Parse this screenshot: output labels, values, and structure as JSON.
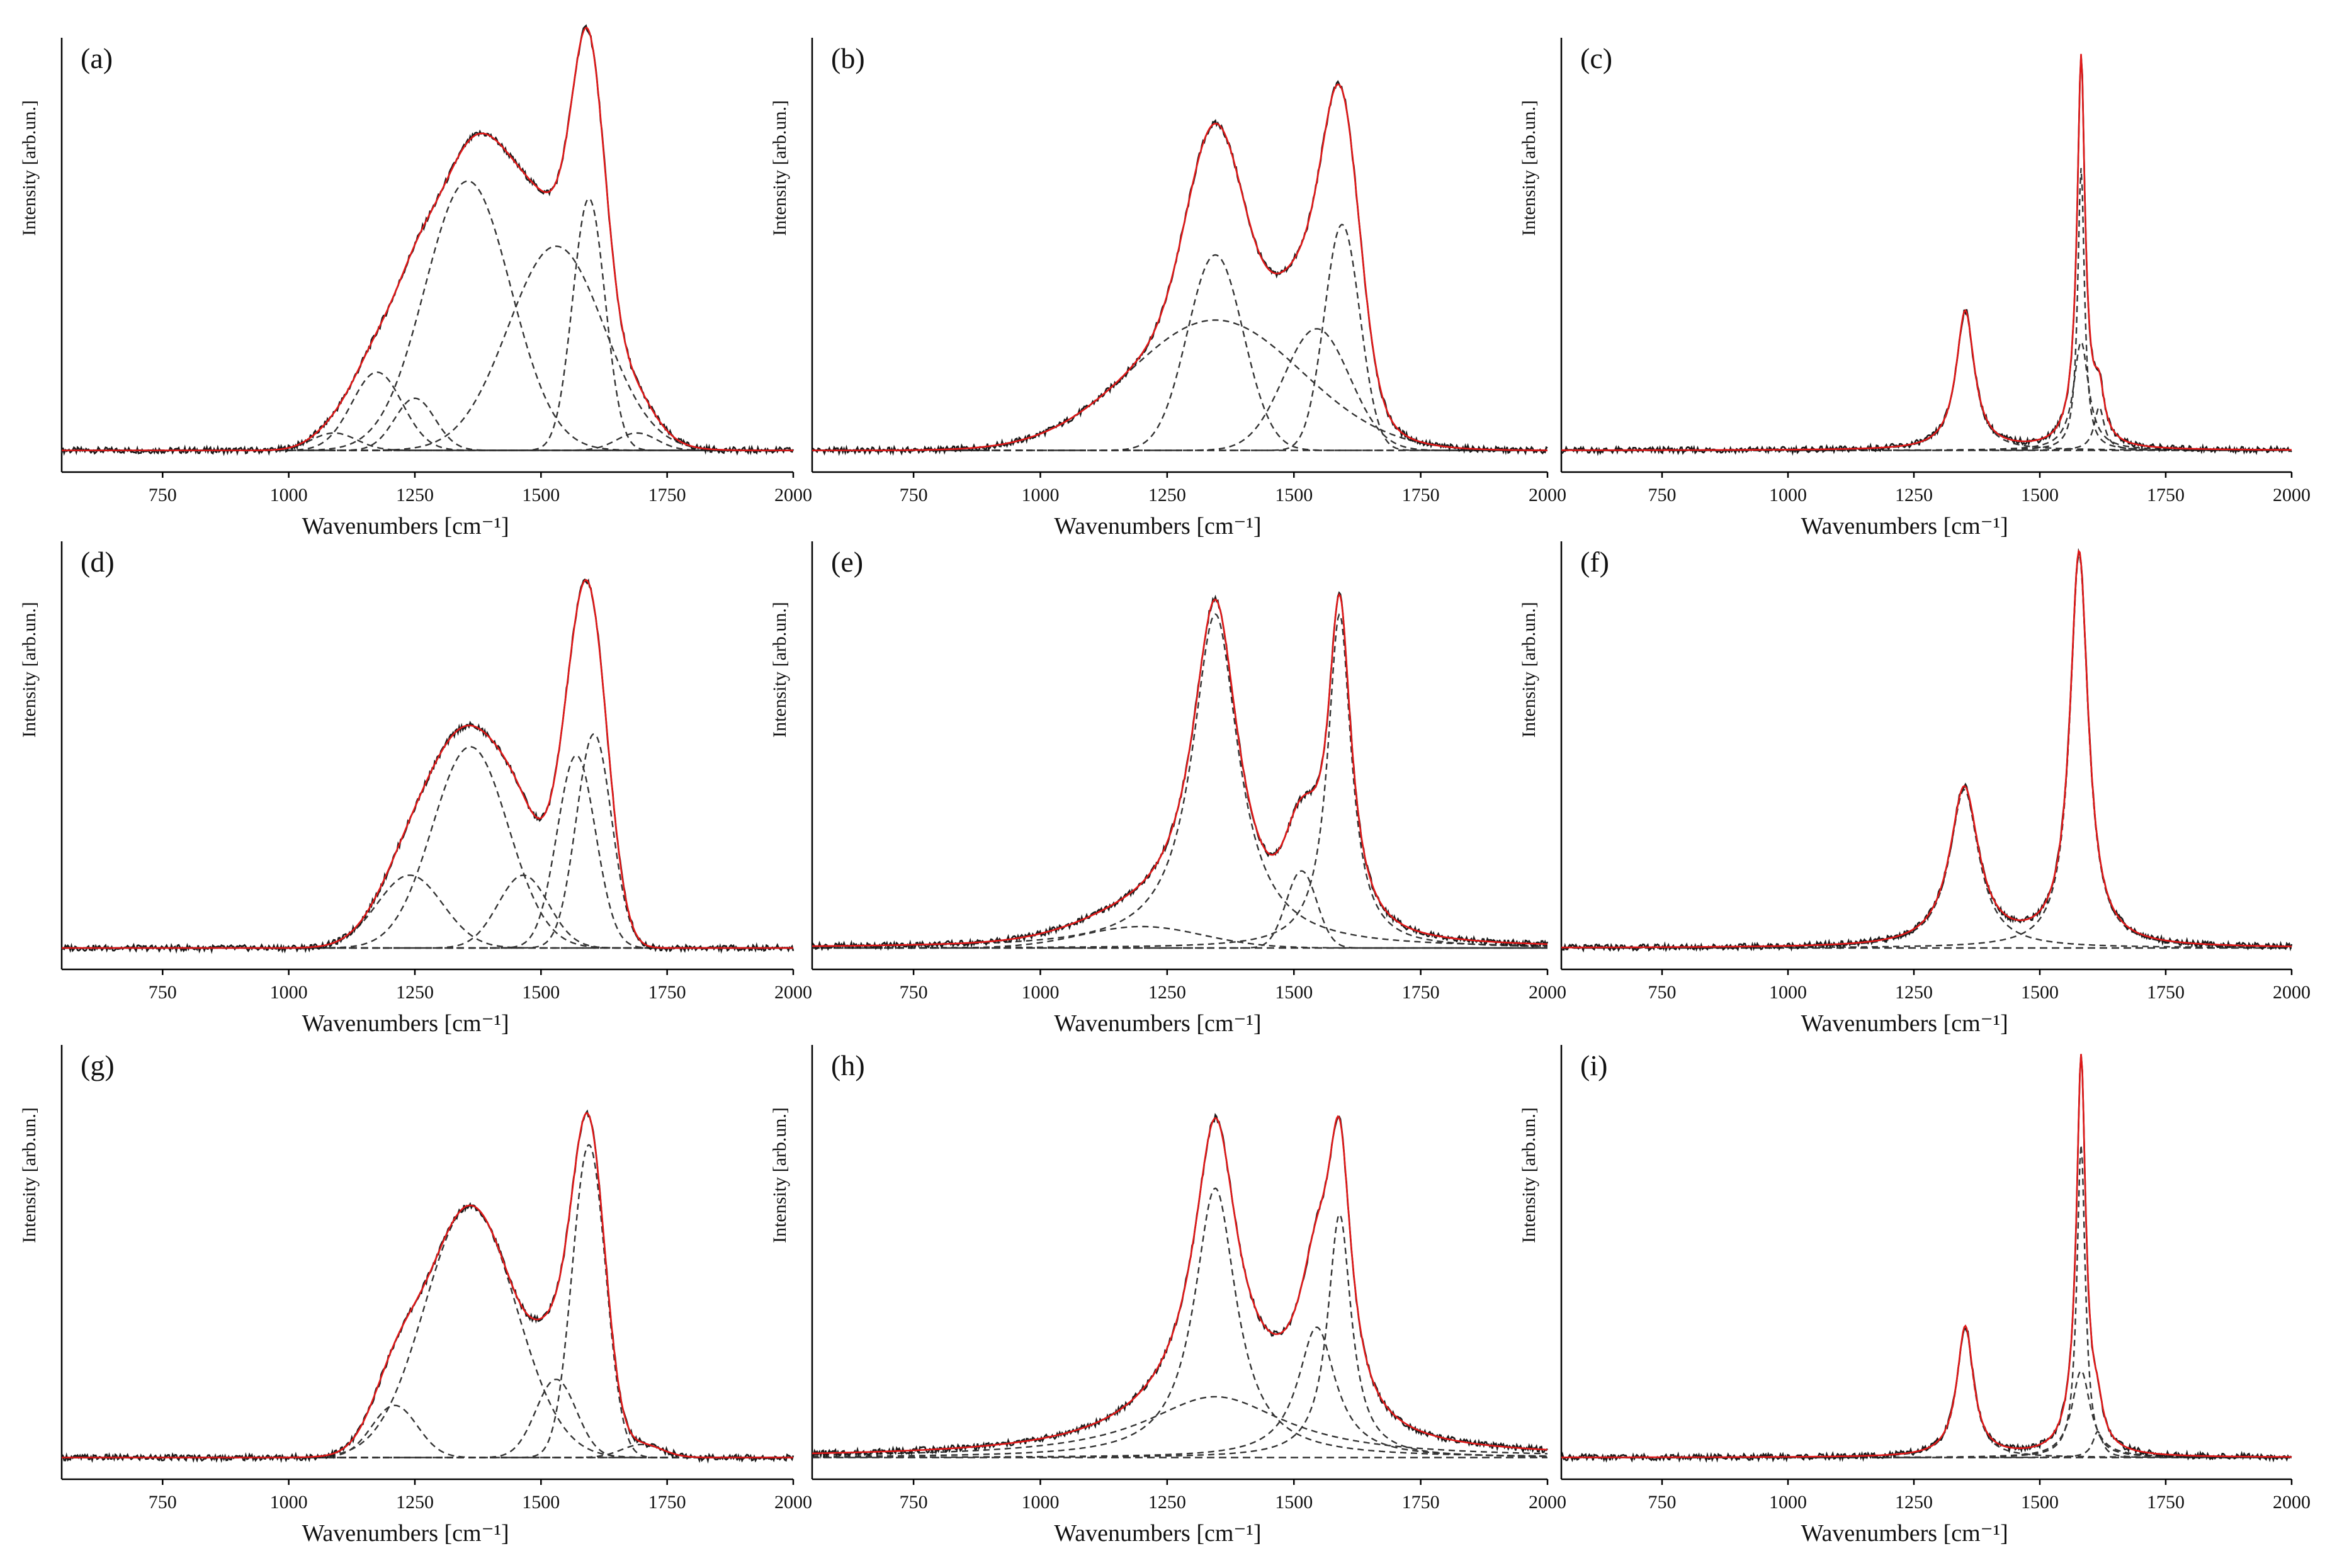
{
  "colors": {
    "measured": "#1a1a1a",
    "fit": "#e01818",
    "component": "#333333",
    "axis": "#000000"
  },
  "chart_data": [
    {
      "type": "line",
      "label": "(a)",
      "xlabel": "Wavenumbers [cm⁻¹]",
      "ylabel": "Intensity [arb.un.]",
      "xlim": [
        550,
        2000
      ],
      "ylim": [
        0,
        100
      ],
      "baseline": 5,
      "x_ticks": [
        750,
        1000,
        1250,
        1500,
        1750,
        2000
      ],
      "x_tick_labels": [
        "750",
        "1000",
        "1250",
        "1500",
        "1750",
        "2000"
      ],
      "peaks": [
        {
          "center": 1090,
          "height": 4,
          "width": 45,
          "shape": "g"
        },
        {
          "center": 1175,
          "height": 18,
          "width": 50,
          "shape": "g"
        },
        {
          "center": 1250,
          "height": 12,
          "width": 40,
          "shape": "g"
        },
        {
          "center": 1355,
          "height": 62,
          "width": 85,
          "shape": "g"
        },
        {
          "center": 1530,
          "height": 47,
          "width": 95,
          "shape": "g"
        },
        {
          "center": 1595,
          "height": 58,
          "width": 32,
          "shape": "g"
        },
        {
          "center": 1690,
          "height": 4,
          "width": 40,
          "shape": "g"
        }
      ]
    },
    {
      "type": "line",
      "label": "(b)",
      "xlabel": "Wavenumbers [cm⁻¹]",
      "ylabel": "Intensity [arb.un.]",
      "xlim": [
        550,
        2000
      ],
      "ylim": [
        0,
        100
      ],
      "baseline": 5,
      "x_ticks": [
        750,
        1000,
        1250,
        1500,
        1750,
        2000
      ],
      "x_tick_labels": [
        "750",
        "1000",
        "1250",
        "1500",
        "1750",
        "2000"
      ],
      "peaks": [
        {
          "center": 1345,
          "height": 45,
          "width": 55,
          "shape": "g"
        },
        {
          "center": 1345,
          "height": 30,
          "width": 170,
          "shape": "g"
        },
        {
          "center": 1545,
          "height": 28,
          "width": 65,
          "shape": "g"
        },
        {
          "center": 1595,
          "height": 52,
          "width": 35,
          "shape": "g"
        }
      ]
    },
    {
      "type": "line",
      "label": "(c)",
      "xlabel": "Wavenumbers [cm⁻¹]",
      "ylabel": "Intensity [arb.un.]",
      "xlim": [
        550,
        2000
      ],
      "ylim": [
        0,
        100
      ],
      "baseline": 5,
      "x_ticks": [
        750,
        1000,
        1250,
        1500,
        1750,
        2000
      ],
      "x_tick_labels": [
        "750",
        "1000",
        "1250",
        "1500",
        "1750",
        "2000"
      ],
      "peaks": [
        {
          "center": 1352,
          "height": 32,
          "width": 22,
          "shape": "l"
        },
        {
          "center": 1582,
          "height": 65,
          "width": 8,
          "shape": "l"
        },
        {
          "center": 1582,
          "height": 25,
          "width": 18,
          "shape": "l"
        },
        {
          "center": 1618,
          "height": 10,
          "width": 12,
          "shape": "l"
        }
      ]
    },
    {
      "type": "line",
      "label": "(d)",
      "xlabel": "Wavenumbers [cm⁻¹]",
      "ylabel": "Intensity [arb.un.]",
      "xlim": [
        550,
        2000
      ],
      "ylim": [
        0,
        100
      ],
      "baseline": 5,
      "x_ticks": [
        750,
        1000,
        1250,
        1500,
        1750,
        2000
      ],
      "x_tick_labels": [
        "750",
        "1000",
        "1250",
        "1500",
        "1750",
        "2000"
      ],
      "peaks": [
        {
          "center": 1240,
          "height": 17,
          "width": 65,
          "shape": "g"
        },
        {
          "center": 1360,
          "height": 47,
          "width": 75,
          "shape": "g"
        },
        {
          "center": 1465,
          "height": 17,
          "width": 50,
          "shape": "g"
        },
        {
          "center": 1570,
          "height": 45,
          "width": 38,
          "shape": "g"
        },
        {
          "center": 1605,
          "height": 50,
          "width": 35,
          "shape": "g"
        }
      ]
    },
    {
      "type": "line",
      "label": "(e)",
      "xlabel": "Wavenumbers [cm⁻¹]",
      "ylabel": "Intensity [arb.un.]",
      "xlim": [
        550,
        2000
      ],
      "ylim": [
        0,
        100
      ],
      "baseline": 5,
      "x_ticks": [
        750,
        1000,
        1250,
        1500,
        1750,
        2000
      ],
      "x_tick_labels": [
        "750",
        "1000",
        "1250",
        "1500",
        "1750",
        "2000"
      ],
      "peaks": [
        {
          "center": 1200,
          "height": 5,
          "width": 120,
          "shape": "g"
        },
        {
          "center": 1345,
          "height": 78,
          "width": 55,
          "shape": "l"
        },
        {
          "center": 1515,
          "height": 18,
          "width": 30,
          "shape": "g"
        },
        {
          "center": 1590,
          "height": 78,
          "width": 28,
          "shape": "l"
        }
      ]
    },
    {
      "type": "line",
      "label": "(f)",
      "xlabel": "Wavenumbers [cm⁻¹]",
      "ylabel": "Intensity [arb.un.]",
      "xlim": [
        550,
        2000
      ],
      "ylim": [
        0,
        100
      ],
      "baseline": 5,
      "x_ticks": [
        750,
        1000,
        1250,
        1500,
        1750,
        2000
      ],
      "x_tick_labels": [
        "750",
        "1000",
        "1250",
        "1500",
        "1750",
        "2000"
      ],
      "peaks": [
        {
          "center": 1350,
          "height": 37,
          "width": 35,
          "shape": "l"
        },
        {
          "center": 1578,
          "height": 92,
          "width": 22,
          "shape": "l"
        }
      ]
    },
    {
      "type": "line",
      "label": "(g)",
      "xlabel": "Wavenumbers [cm⁻¹]",
      "ylabel": "Intensity [arb.un.]",
      "xlim": [
        550,
        2000
      ],
      "ylim": [
        0,
        100
      ],
      "baseline": 5,
      "x_ticks": [
        750,
        1000,
        1250,
        1500,
        1750,
        2000
      ],
      "x_tick_labels": [
        "750",
        "1000",
        "1250",
        "1500",
        "1750",
        "2000"
      ],
      "peaks": [
        {
          "center": 1210,
          "height": 12,
          "width": 45,
          "shape": "g"
        },
        {
          "center": 1360,
          "height": 58,
          "width": 90,
          "shape": "g"
        },
        {
          "center": 1530,
          "height": 18,
          "width": 40,
          "shape": "g"
        },
        {
          "center": 1595,
          "height": 72,
          "width": 33,
          "shape": "g"
        },
        {
          "center": 1700,
          "height": 3,
          "width": 40,
          "shape": "g"
        }
      ]
    },
    {
      "type": "line",
      "label": "(h)",
      "xlabel": "Wavenumbers [cm⁻¹]",
      "ylabel": "Intensity [arb.un.]",
      "xlim": [
        550,
        2000
      ],
      "ylim": [
        0,
        100
      ],
      "baseline": 5,
      "x_ticks": [
        750,
        1000,
        1250,
        1500,
        1750,
        2000
      ],
      "x_tick_labels": [
        "750",
        "1000",
        "1250",
        "1500",
        "1750",
        "2000"
      ],
      "peaks": [
        {
          "center": 1345,
          "height": 62,
          "width": 50,
          "shape": "l"
        },
        {
          "center": 1345,
          "height": 14,
          "width": 170,
          "shape": "l"
        },
        {
          "center": 1545,
          "height": 30,
          "width": 45,
          "shape": "l"
        },
        {
          "center": 1590,
          "height": 56,
          "width": 28,
          "shape": "l"
        }
      ]
    },
    {
      "type": "line",
      "label": "(i)",
      "xlabel": "Wavenumbers [cm⁻¹]",
      "ylabel": "Intensity [arb.un.]",
      "xlim": [
        550,
        2000
      ],
      "ylim": [
        0,
        100
      ],
      "baseline": 5,
      "x_ticks": [
        750,
        1000,
        1250,
        1500,
        1750,
        2000
      ],
      "x_tick_labels": [
        "750",
        "1000",
        "1250",
        "1500",
        "1750",
        "2000"
      ],
      "peaks": [
        {
          "center": 1352,
          "height": 30,
          "width": 20,
          "shape": "l"
        },
        {
          "center": 1582,
          "height": 72,
          "width": 10,
          "shape": "l"
        },
        {
          "center": 1582,
          "height": 20,
          "width": 22,
          "shape": "l"
        },
        {
          "center": 1615,
          "height": 6,
          "width": 12,
          "shape": "l"
        }
      ]
    }
  ]
}
